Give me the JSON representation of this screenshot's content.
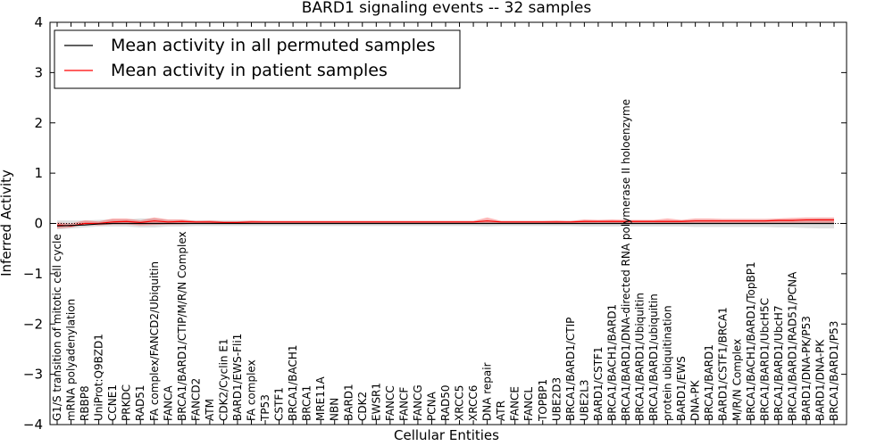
{
  "chart_data": {
    "type": "line",
    "title": "BARD1 signaling events -- 32 samples",
    "xlabel": "Cellular Entities",
    "ylabel": "Inferred Activity",
    "ylim": [
      -4,
      4
    ],
    "yticks": [
      -4,
      -3,
      -2,
      -1,
      0,
      1,
      2,
      3,
      4
    ],
    "ytick_labels": [
      "−4",
      "−3",
      "−2",
      "−1",
      "0",
      "1",
      "2",
      "3",
      "4"
    ],
    "categories": [
      "G1/S transition of mitotic cell cycle",
      "mRNA polyadenylation",
      "RBBP8",
      "UniProt:Q9BZD1",
      "CCNE1",
      "PRKDC",
      "RAD51",
      "FA complex/FANCD2/Ubiquitin",
      "FANCA",
      "BRCA1/BARD1/CTIP/M/R/N Complex",
      "FANCD2",
      "ATM",
      "CDK2/Cyclin E1",
      "BARD1/EWS-Fli1",
      "FA complex",
      "TP53",
      "CSTF1",
      "BRCA1/BACH1",
      "BRCA1",
      "MRE11A",
      "NBN",
      "BARD1",
      "CDK2",
      "EWSR1",
      "FANCC",
      "FANCF",
      "FANCG",
      "PCNA",
      "RAD50",
      "XRCC5",
      "XRCC6",
      "DNA repair",
      "ATR",
      "FANCE",
      "FANCL",
      "TOPBP1",
      "UBE2D3",
      "BRCA1/BARD1/CTIP",
      "UBE2L3",
      "BARD1/CSTF1",
      "BRCA1/BACH1/BARD1",
      "BRCA1/BARD1/DNA-directed RNA polymerase II holoenzyme",
      "BRCA1/BARD1/Ubiquitin",
      "BRCA1/BARD1/ubiquitin",
      "protein ubiquitination",
      "BARD1/EWS",
      "DNA-PK",
      "BRCA1/BARD1",
      "BARD1/CSTF1/BRCA1",
      "M/R/N Complex",
      "BRCA1/BACH1/BARD1/TopBP1",
      "BRCA1/BARD1/UbcH5C",
      "BRCA1/BARD1/UbcH7",
      "BRCA1/BARD1/RAD51/PCNA",
      "BARD1/DNA-PK/P53",
      "BARD1/DNA-PK",
      "BRCA1/BARD1/P53"
    ],
    "series": [
      {
        "name": "Mean activity in all permuted samples",
        "color": "#000000",
        "values": [
          -0.05,
          -0.04,
          -0.03,
          -0.01,
          0.0,
          0.0,
          0.0,
          0.0,
          0.0,
          0.0,
          0.0,
          0.0,
          0.0,
          0.0,
          0.0,
          0.0,
          0.0,
          0.0,
          0.0,
          0.0,
          0.0,
          0.0,
          0.0,
          0.0,
          0.0,
          0.0,
          0.0,
          0.0,
          0.0,
          0.0,
          0.0,
          0.0,
          0.0,
          0.0,
          0.0,
          0.0,
          0.0,
          0.0,
          0.0,
          0.0,
          0.0,
          0.0,
          0.0,
          0.0,
          0.0,
          0.0,
          0.0,
          0.0,
          0.0,
          0.0,
          0.0,
          0.0,
          0.0,
          0.0,
          0.0,
          0.0,
          0.0
        ],
        "band_low": [
          -0.12,
          -0.1,
          -0.08,
          -0.06,
          -0.06,
          -0.06,
          -0.08,
          -0.08,
          -0.06,
          -0.06,
          -0.05,
          -0.05,
          -0.05,
          -0.05,
          -0.05,
          -0.05,
          -0.05,
          -0.05,
          -0.05,
          -0.05,
          -0.05,
          -0.05,
          -0.05,
          -0.05,
          -0.05,
          -0.05,
          -0.05,
          -0.05,
          -0.05,
          -0.05,
          -0.05,
          -0.06,
          -0.05,
          -0.05,
          -0.05,
          -0.05,
          -0.05,
          -0.05,
          -0.06,
          -0.06,
          -0.06,
          -0.06,
          -0.06,
          -0.06,
          -0.06,
          -0.06,
          -0.07,
          -0.07,
          -0.07,
          -0.07,
          -0.07,
          -0.07,
          -0.08,
          -0.08,
          -0.09,
          -0.1,
          -0.1
        ],
        "band_high": [
          0.06,
          0.06,
          0.06,
          0.07,
          0.08,
          0.08,
          0.1,
          0.1,
          0.07,
          0.07,
          0.06,
          0.06,
          0.06,
          0.06,
          0.05,
          0.05,
          0.05,
          0.05,
          0.05,
          0.05,
          0.05,
          0.05,
          0.05,
          0.05,
          0.05,
          0.05,
          0.05,
          0.05,
          0.05,
          0.05,
          0.05,
          0.07,
          0.05,
          0.05,
          0.05,
          0.05,
          0.05,
          0.05,
          0.06,
          0.06,
          0.06,
          0.06,
          0.06,
          0.06,
          0.06,
          0.06,
          0.07,
          0.07,
          0.07,
          0.07,
          0.07,
          0.07,
          0.08,
          0.08,
          0.09,
          0.1,
          0.1
        ]
      },
      {
        "name": "Mean activity in patient samples",
        "color": "#ff0000",
        "values": [
          -0.03,
          -0.05,
          0.0,
          0.0,
          0.03,
          0.04,
          0.02,
          0.05,
          0.03,
          0.04,
          0.03,
          0.03,
          0.02,
          0.02,
          0.03,
          0.03,
          0.03,
          0.03,
          0.03,
          0.03,
          0.03,
          0.03,
          0.03,
          0.03,
          0.03,
          0.03,
          0.03,
          0.03,
          0.03,
          0.03,
          0.03,
          0.05,
          0.03,
          0.03,
          0.03,
          0.03,
          0.03,
          0.03,
          0.04,
          0.04,
          0.04,
          0.04,
          0.04,
          0.04,
          0.04,
          0.04,
          0.05,
          0.05,
          0.05,
          0.05,
          0.05,
          0.05,
          0.06,
          0.06,
          0.07,
          0.07,
          0.07
        ],
        "band_low": [
          -0.1,
          -0.08,
          -0.02,
          -0.04,
          -0.02,
          -0.02,
          -0.04,
          -0.03,
          -0.02,
          -0.02,
          0.0,
          0.0,
          0.0,
          0.0,
          0.01,
          0.01,
          0.01,
          0.01,
          0.01,
          0.01,
          0.01,
          0.01,
          0.01,
          0.01,
          0.01,
          0.01,
          0.01,
          0.01,
          0.01,
          0.01,
          0.01,
          0.0,
          0.01,
          0.01,
          0.01,
          0.01,
          0.01,
          0.01,
          0.0,
          0.01,
          0.0,
          0.01,
          0.01,
          0.01,
          0.0,
          0.01,
          0.0,
          0.0,
          0.01,
          0.01,
          0.01,
          0.01,
          0.01,
          0.01,
          0.01,
          0.01,
          0.01
        ],
        "band_high": [
          0.02,
          0.0,
          0.06,
          0.04,
          0.1,
          0.1,
          0.06,
          0.12,
          0.08,
          0.08,
          0.05,
          0.06,
          0.04,
          0.04,
          0.06,
          0.05,
          0.05,
          0.05,
          0.05,
          0.05,
          0.05,
          0.05,
          0.05,
          0.05,
          0.05,
          0.05,
          0.05,
          0.05,
          0.05,
          0.05,
          0.05,
          0.12,
          0.05,
          0.05,
          0.05,
          0.05,
          0.06,
          0.05,
          0.08,
          0.07,
          0.08,
          0.07,
          0.07,
          0.07,
          0.1,
          0.07,
          0.1,
          0.1,
          0.09,
          0.09,
          0.09,
          0.09,
          0.1,
          0.11,
          0.12,
          0.12,
          0.12
        ]
      }
    ],
    "baseline": 0,
    "legend_position": "top-left"
  }
}
